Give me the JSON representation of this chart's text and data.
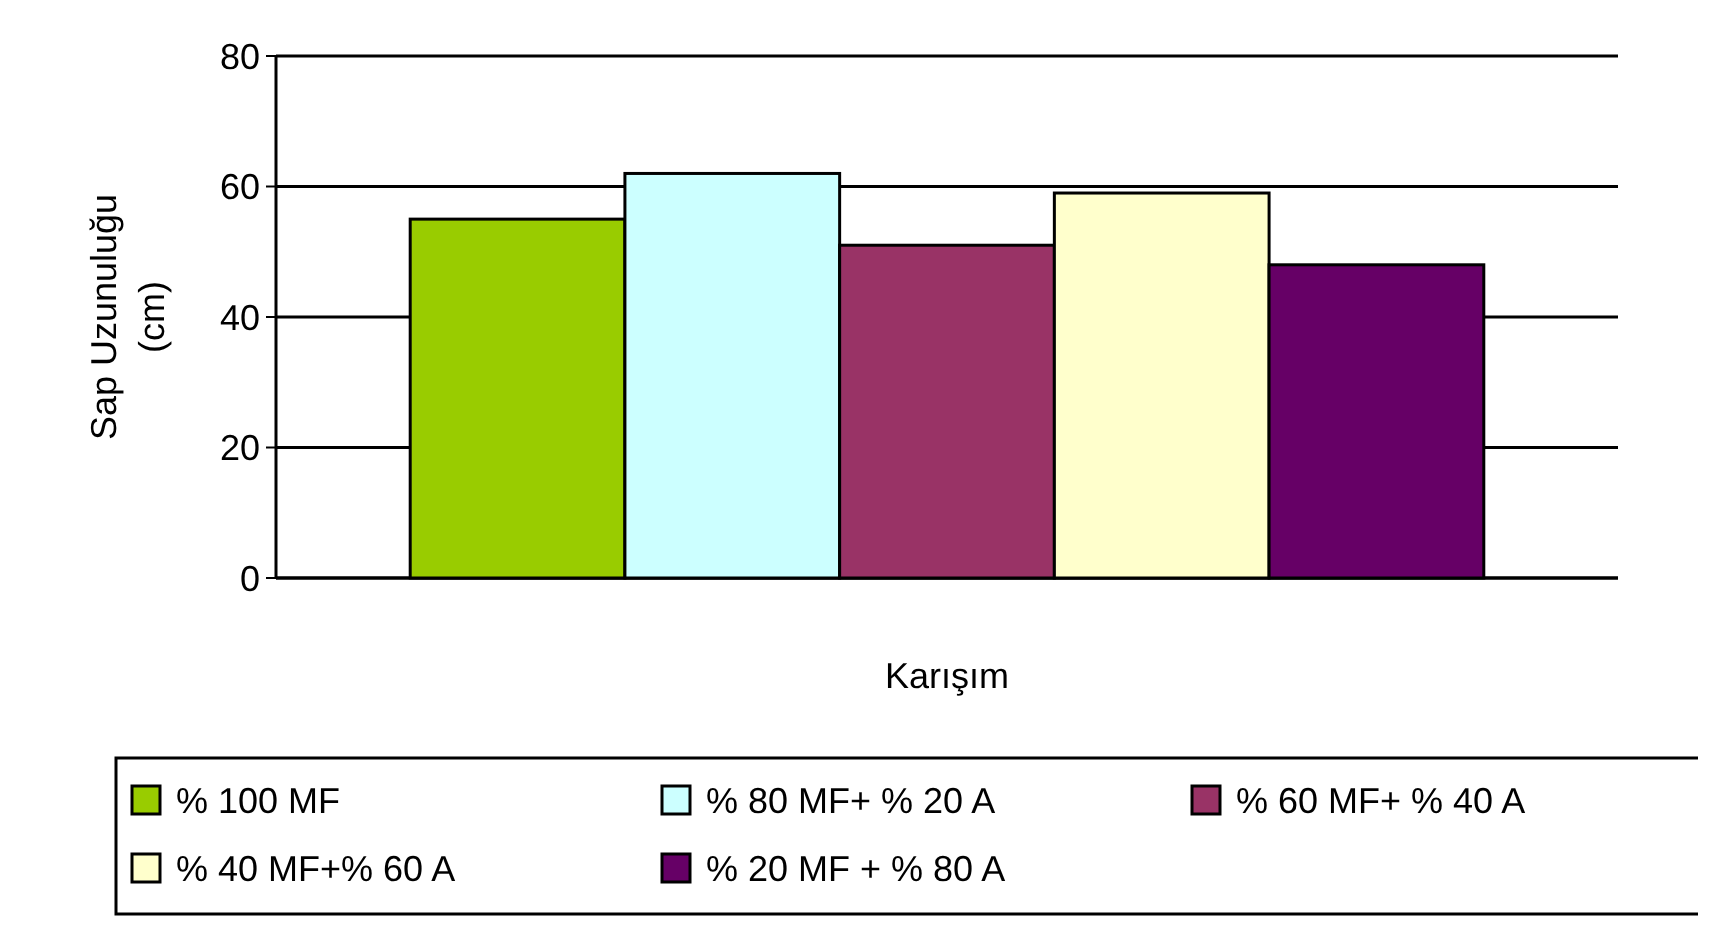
{
  "chart_data": {
    "type": "bar",
    "categories": [
      null
    ],
    "xlabel": "Karışım",
    "ylabel": "Sap Uzunuluğu (cm)",
    "series": [
      {
        "name": "% 100 MF",
        "color": "#99cc00",
        "values": [
          55
        ]
      },
      {
        "name": "% 80 MF+ % 20 A",
        "color": "#ccffff",
        "values": [
          62
        ]
      },
      {
        "name": "% 60 MF+ % 40 A",
        "color": "#993366",
        "values": [
          51
        ]
      },
      {
        "name": "% 40 MF+% 60 A",
        "color": "#ffffcc",
        "values": [
          59
        ]
      },
      {
        "name": "% 20 MF + % 80 A",
        "color": "#660066",
        "values": [
          48
        ]
      }
    ],
    "ylim": [
      0,
      80
    ],
    "yticks": [
      0,
      20,
      40,
      60,
      80
    ],
    "grid": "y",
    "legend": "bottom"
  }
}
